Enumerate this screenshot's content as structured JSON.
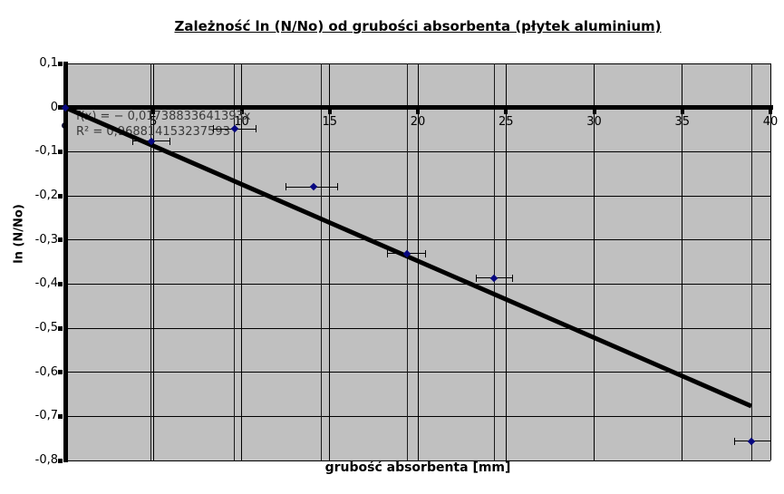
{
  "chart_data": {
    "type": "scatter",
    "title": "Zależność ln (N/No) od grubości absorbenta (płytek aluminium)",
    "xlabel": "grubość absorbenta [mm]",
    "ylabel": "ln (N/No)",
    "xlim": [
      0,
      40
    ],
    "ylim": [
      -0.8,
      0.1
    ],
    "grid": true,
    "legend_position": "none",
    "x_ticks": [
      {
        "label": "5",
        "value": 5
      },
      {
        "label": "10",
        "value": 10
      },
      {
        "label": "15",
        "value": 15
      },
      {
        "label": "20",
        "value": 20
      },
      {
        "label": "25",
        "value": 25
      },
      {
        "label": "30",
        "value": 30
      },
      {
        "label": "35",
        "value": 35
      },
      {
        "label": "40",
        "value": 40
      }
    ],
    "y_ticks": [
      {
        "label": "0,1",
        "value": 0.1
      },
      {
        "label": "0",
        "value": 0
      },
      {
        "label": "-0,1",
        "value": -0.1
      },
      {
        "label": "-0,2",
        "value": -0.2
      },
      {
        "label": "-0,3",
        "value": -0.3
      },
      {
        "label": "-0,4",
        "value": -0.4
      },
      {
        "label": "-0,5",
        "value": -0.5
      },
      {
        "label": "-0,6",
        "value": -0.6
      },
      {
        "label": "-0,7",
        "value": -0.7
      },
      {
        "label": "-0,8",
        "value": -0.8
      }
    ],
    "points": [
      {
        "x": 0,
        "y": 0,
        "x_low": null,
        "x_high": null
      },
      {
        "x": 4.9,
        "y": -0.076,
        "x_low": 3.85,
        "x_high": 5.95
      },
      {
        "x": 9.6,
        "y": -0.048,
        "x_low": 8.4,
        "x_high": 10.8
      },
      {
        "x": 14.1,
        "y": -0.18,
        "x_low": 12.5,
        "x_high": 15.45
      },
      {
        "x": 19.4,
        "y": -0.331,
        "x_low": 18.3,
        "x_high": 20.45
      },
      {
        "x": 24.32,
        "y": -0.386,
        "x_low": 23.3,
        "x_high": 25.35
      },
      {
        "x": 38.92,
        "y": -0.756,
        "x_low": 37.95,
        "x_high": 40.0
      }
    ],
    "hidden_point": {
      "x": 0,
      "y": -0.04
    },
    "data_x_lines": [
      4.85,
      9.6,
      14.55,
      19.4,
      24.32,
      38.95
    ],
    "trendline": {
      "equation_label": "f(x) = − 0,01738833641393x",
      "r2_label": "R² = 0,968814153237593",
      "slope": -0.01738833641393,
      "intercept": 0,
      "x_start": 0,
      "x_end": 38.92
    }
  },
  "colors": {
    "plot_background": "#c0c0c0",
    "gridline": "#000000",
    "marker": "#080880",
    "trendline": "#000000",
    "equation_text": "#3a3a3a"
  }
}
